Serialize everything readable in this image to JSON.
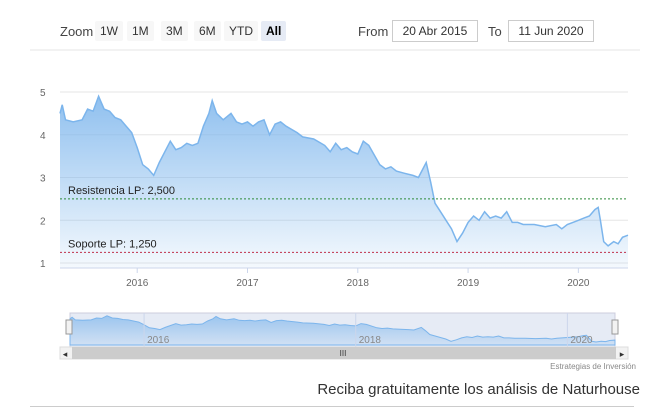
{
  "toolbar": {
    "zoom_label": "Zoom",
    "buttons": [
      "1W",
      "1M",
      "3M",
      "6M",
      "YTD",
      "All"
    ],
    "active": "All",
    "from_label": "From",
    "from_value": "20 Abr 2015",
    "to_label": "To",
    "to_value": "11 Jun 2020"
  },
  "chart_data": {
    "type": "area",
    "x_ticks": [
      "2016",
      "2017",
      "2018",
      "2019",
      "2020"
    ],
    "y_ticks": [
      "1",
      "2",
      "3",
      "4",
      "5"
    ],
    "ylim": [
      1,
      5
    ],
    "x_range": [
      2015.3,
      2020.45
    ],
    "series": [
      {
        "points": [
          [
            2015.3,
            4.5
          ],
          [
            2015.32,
            4.7
          ],
          [
            2015.35,
            4.35
          ],
          [
            2015.42,
            4.3
          ],
          [
            2015.5,
            4.35
          ],
          [
            2015.55,
            4.6
          ],
          [
            2015.6,
            4.55
          ],
          [
            2015.65,
            4.9
          ],
          [
            2015.7,
            4.6
          ],
          [
            2015.75,
            4.55
          ],
          [
            2015.8,
            4.4
          ],
          [
            2015.85,
            4.35
          ],
          [
            2015.9,
            4.2
          ],
          [
            2015.95,
            4.05
          ],
          [
            2016.0,
            3.7
          ],
          [
            2016.05,
            3.3
          ],
          [
            2016.1,
            3.2
          ],
          [
            2016.15,
            3.05
          ],
          [
            2016.2,
            3.35
          ],
          [
            2016.25,
            3.6
          ],
          [
            2016.3,
            3.85
          ],
          [
            2016.35,
            3.65
          ],
          [
            2016.4,
            3.7
          ],
          [
            2016.45,
            3.8
          ],
          [
            2016.5,
            3.75
          ],
          [
            2016.55,
            3.8
          ],
          [
            2016.6,
            4.2
          ],
          [
            2016.65,
            4.5
          ],
          [
            2016.68,
            4.8
          ],
          [
            2016.72,
            4.5
          ],
          [
            2016.78,
            4.35
          ],
          [
            2016.85,
            4.5
          ],
          [
            2016.9,
            4.3
          ],
          [
            2016.95,
            4.25
          ],
          [
            2017.0,
            4.3
          ],
          [
            2017.05,
            4.2
          ],
          [
            2017.1,
            4.3
          ],
          [
            2017.15,
            4.35
          ],
          [
            2017.2,
            4.0
          ],
          [
            2017.25,
            4.25
          ],
          [
            2017.3,
            4.3
          ],
          [
            2017.35,
            4.2
          ],
          [
            2017.45,
            4.05
          ],
          [
            2017.5,
            3.95
          ],
          [
            2017.6,
            3.9
          ],
          [
            2017.7,
            3.75
          ],
          [
            2017.75,
            3.6
          ],
          [
            2017.8,
            3.8
          ],
          [
            2017.85,
            3.65
          ],
          [
            2017.9,
            3.7
          ],
          [
            2017.95,
            3.6
          ],
          [
            2018.0,
            3.55
          ],
          [
            2018.05,
            3.85
          ],
          [
            2018.1,
            3.75
          ],
          [
            2018.2,
            3.3
          ],
          [
            2018.25,
            3.2
          ],
          [
            2018.3,
            3.25
          ],
          [
            2018.35,
            3.15
          ],
          [
            2018.42,
            3.1
          ],
          [
            2018.5,
            3.05
          ],
          [
            2018.55,
            3.0
          ],
          [
            2018.62,
            3.35
          ],
          [
            2018.66,
            2.9
          ],
          [
            2018.7,
            2.4
          ],
          [
            2018.75,
            2.2
          ],
          [
            2018.8,
            2.0
          ],
          [
            2018.85,
            1.8
          ],
          [
            2018.9,
            1.5
          ],
          [
            2018.95,
            1.7
          ],
          [
            2019.0,
            1.95
          ],
          [
            2019.05,
            2.1
          ],
          [
            2019.1,
            2.0
          ],
          [
            2019.15,
            2.2
          ],
          [
            2019.2,
            2.05
          ],
          [
            2019.25,
            2.1
          ],
          [
            2019.3,
            2.05
          ],
          [
            2019.35,
            2.2
          ],
          [
            2019.4,
            1.95
          ],
          [
            2019.45,
            1.95
          ],
          [
            2019.5,
            1.9
          ],
          [
            2019.6,
            1.9
          ],
          [
            2019.7,
            1.85
          ],
          [
            2019.8,
            1.9
          ],
          [
            2019.85,
            1.8
          ],
          [
            2019.9,
            1.9
          ],
          [
            2019.95,
            1.95
          ],
          [
            2020.0,
            2.0
          ],
          [
            2020.05,
            2.05
          ],
          [
            2020.1,
            2.1
          ],
          [
            2020.15,
            2.25
          ],
          [
            2020.18,
            2.3
          ],
          [
            2020.2,
            2.0
          ],
          [
            2020.23,
            1.5
          ],
          [
            2020.27,
            1.4
          ],
          [
            2020.32,
            1.5
          ],
          [
            2020.36,
            1.45
          ],
          [
            2020.4,
            1.6
          ],
          [
            2020.45,
            1.65
          ]
        ],
        "color": "#7cb5ec"
      }
    ],
    "plot_lines": [
      {
        "label": "Resistencia LP: 2,500",
        "value": 2.5,
        "color": "#2e8b3a"
      },
      {
        "label": "Soporte LP: 1,250",
        "value": 1.25,
        "color": "#c0304a"
      }
    ],
    "navigator_ticks": [
      "2016",
      "2018",
      "2020"
    ]
  },
  "credit": "Estrategias de Inversión",
  "footer_text": "Reciba gratuitamente los análisis de Naturhouse",
  "scroll_handle": "III",
  "scroll_left_arrow": "◂",
  "scroll_right_arrow": "▸"
}
